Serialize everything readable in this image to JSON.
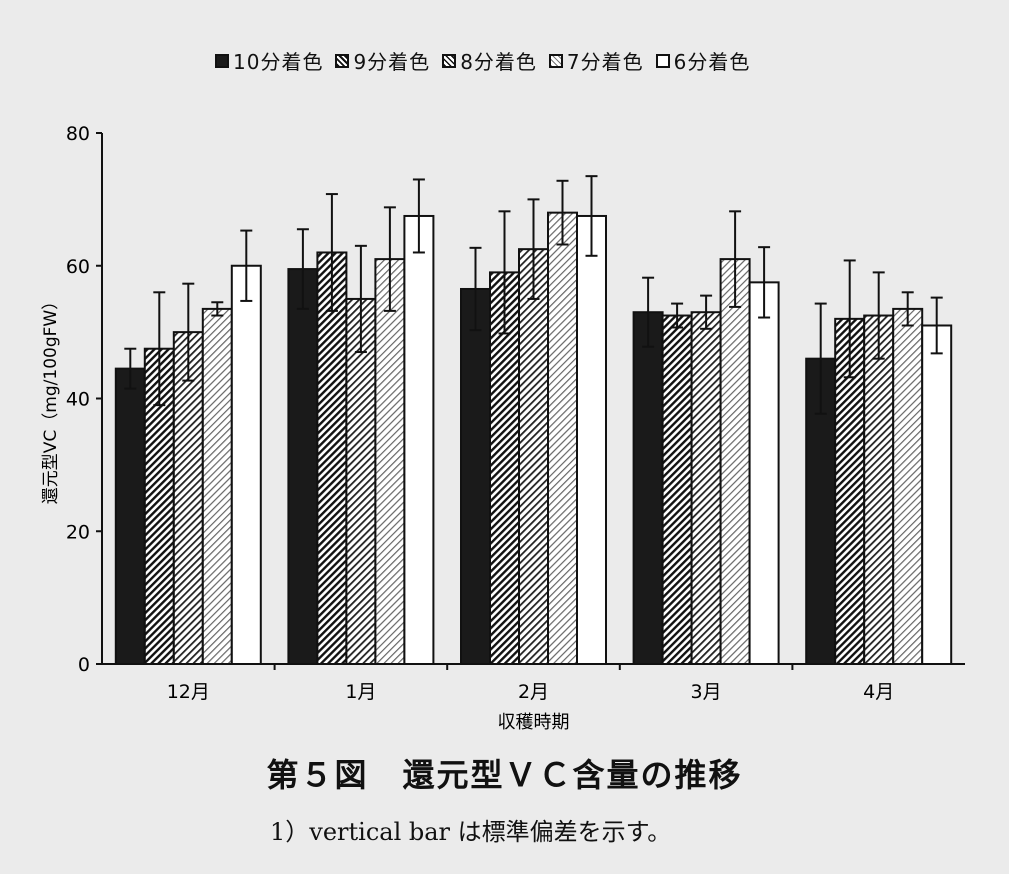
{
  "chart_data": {
    "type": "bar",
    "categories": [
      "12月",
      "1月",
      "2月",
      "3月",
      "4月"
    ],
    "series": [
      {
        "name": "10分着色",
        "values": [
          44.5,
          59.5,
          56.5,
          53,
          46
        ],
        "errors": [
          3,
          6,
          6.2,
          5.2,
          8.3
        ],
        "fill": "solid",
        "color": "#1a1a1a"
      },
      {
        "name": "9分着色",
        "values": [
          47.5,
          62,
          59,
          52.5,
          52
        ],
        "errors": [
          8.5,
          8.8,
          9.2,
          1.8,
          8.8
        ],
        "fill": "hatch-dense",
        "color": "#4a4a4a"
      },
      {
        "name": "8分着色",
        "values": [
          50,
          55,
          62.5,
          53,
          52.5
        ],
        "errors": [
          7.3,
          8,
          7.5,
          2.5,
          6.5
        ],
        "fill": "hatch-medium",
        "color": "#6a6a6a"
      },
      {
        "name": "7分着色",
        "values": [
          53.5,
          61,
          68,
          61,
          53.5
        ],
        "errors": [
          1,
          7.8,
          4.8,
          7.2,
          2.5
        ],
        "fill": "hatch-light",
        "color": "#9a9a9a"
      },
      {
        "name": "6分着色",
        "values": [
          60,
          67.5,
          67.5,
          57.5,
          51
        ],
        "errors": [
          5.3,
          5.5,
          6,
          5.3,
          4.2
        ],
        "fill": "white",
        "color": "#ffffff"
      }
    ],
    "ylabel": "還元型VC（mg/100gFW）",
    "xlabel": "収穫時期",
    "ylim": [
      0,
      80
    ],
    "yticks": [
      0,
      20,
      40,
      60,
      80
    ],
    "legend_position": "top"
  },
  "caption": {
    "title": "第５図　還元型ＶＣ含量の推移",
    "note": "1）vertical bar は標準偏差を示す。"
  }
}
